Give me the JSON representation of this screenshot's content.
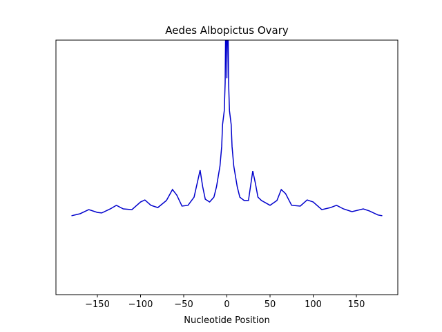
{
  "chart_data": {
    "type": "line",
    "title": "Aedes Albopictus Ovary",
    "x_label": "Nucleotide Position",
    "xlim": [
      -198,
      198
    ],
    "ylim": [
      0,
      1
    ],
    "xticks": [
      {
        "value": -150,
        "label": "−150"
      },
      {
        "value": -100,
        "label": "−100"
      },
      {
        "value": -50,
        "label": "−50"
      },
      0,
      50,
      100,
      150
    ],
    "series": [
      {
        "color": "#0000cc",
        "x": [
          -180,
          -170,
          -160,
          -150,
          -145,
          -135,
          -128,
          -120,
          -110,
          -100,
          -95,
          -88,
          -80,
          -70,
          -63,
          -58,
          -52,
          -45,
          -38,
          -31,
          -28,
          -25,
          -20,
          -15,
          -12,
          -8,
          -6,
          -5,
          -3,
          -2,
          -1,
          0,
          1,
          2,
          3,
          5,
          6,
          8,
          12,
          15,
          20,
          25,
          30,
          33,
          36,
          40,
          50,
          58,
          63,
          68,
          75,
          85,
          93,
          100,
          110,
          120,
          127,
          135,
          145,
          158,
          165,
          175,
          180
        ],
        "values": [
          0.31,
          0.318,
          0.334,
          0.323,
          0.321,
          0.337,
          0.351,
          0.337,
          0.334,
          0.364,
          0.372,
          0.351,
          0.342,
          0.37,
          0.413,
          0.391,
          0.348,
          0.351,
          0.383,
          0.489,
          0.424,
          0.375,
          0.364,
          0.383,
          0.424,
          0.505,
          0.582,
          0.668,
          0.723,
          0.832,
          1.2,
          0.85,
          1.2,
          0.832,
          0.723,
          0.668,
          0.582,
          0.505,
          0.424,
          0.383,
          0.37,
          0.37,
          0.486,
          0.438,
          0.383,
          0.37,
          0.351,
          0.37,
          0.413,
          0.397,
          0.351,
          0.348,
          0.372,
          0.364,
          0.334,
          0.342,
          0.351,
          0.337,
          0.326,
          0.337,
          0.329,
          0.313,
          0.31
        ]
      }
    ]
  }
}
